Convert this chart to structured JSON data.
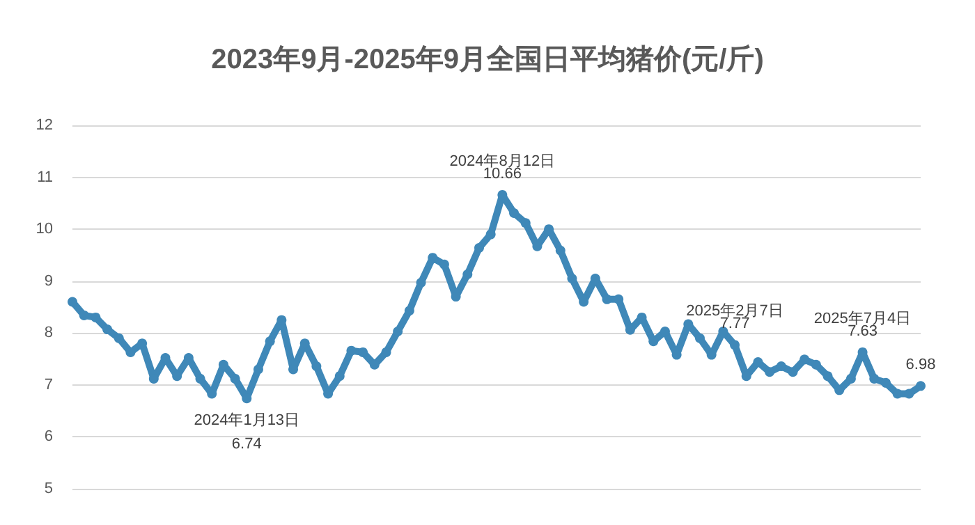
{
  "chart_data": {
    "type": "line",
    "title": "2023年9月-2025年9月全国日平均猪价(元/斤)",
    "grid": "y",
    "marker": "circle",
    "line_style": "solid",
    "ylim": [
      5,
      12
    ],
    "yticks": [
      5,
      6,
      7,
      8,
      9,
      10,
      11,
      12
    ],
    "categories": [
      null,
      null,
      null,
      null,
      null,
      null,
      null,
      null,
      null,
      null,
      null,
      null,
      null,
      null,
      null,
      null,
      null,
      null,
      null,
      null,
      null,
      null,
      null,
      null,
      null,
      null,
      null,
      null,
      null,
      null,
      null,
      null,
      null,
      null,
      null,
      null,
      null,
      null,
      null,
      null,
      null,
      null,
      null,
      null,
      null,
      null,
      null,
      null,
      null,
      null,
      null,
      null,
      null,
      null,
      null,
      null,
      null,
      null,
      null,
      null,
      null,
      null,
      null,
      null,
      null,
      null,
      null,
      null,
      null,
      null,
      null,
      null,
      null,
      null
    ],
    "series": [
      {
        "color": "#3f88b8",
        "values": [
          8.6,
          8.34,
          8.3,
          8.07,
          7.9,
          7.63,
          7.8,
          7.12,
          7.52,
          7.17,
          7.52,
          7.12,
          6.83,
          7.39,
          7.12,
          6.74,
          7.3,
          7.84,
          8.25,
          7.3,
          7.8,
          7.36,
          6.83,
          7.17,
          7.66,
          7.63,
          7.39,
          7.63,
          8.03,
          8.43,
          8.97,
          9.45,
          9.32,
          8.7,
          9.13,
          9.64,
          9.9,
          10.66,
          10.31,
          10.12,
          9.67,
          10.0,
          9.59,
          9.05,
          8.6,
          9.05,
          8.65,
          8.65,
          8.06,
          8.3,
          7.84,
          8.03,
          7.58,
          8.17,
          7.9,
          7.58,
          8.03,
          7.77,
          7.17,
          7.44,
          7.25,
          7.36,
          7.25,
          7.49,
          7.39,
          7.17,
          6.9,
          7.12,
          7.63,
          7.12,
          7.04,
          6.83,
          6.83,
          6.98
        ],
        "value_labels": [
          null,
          null,
          null,
          null,
          null,
          null,
          null,
          null,
          null,
          null,
          null,
          null,
          null,
          null,
          null,
          "6.74",
          null,
          null,
          null,
          null,
          null,
          null,
          null,
          null,
          null,
          null,
          null,
          null,
          null,
          null,
          null,
          null,
          null,
          null,
          null,
          null,
          null,
          "10.66",
          null,
          null,
          null,
          null,
          null,
          null,
          null,
          null,
          null,
          null,
          null,
          null,
          null,
          null,
          null,
          null,
          null,
          null,
          null,
          "7.77",
          null,
          null,
          null,
          null,
          null,
          null,
          null,
          null,
          null,
          null,
          "7.63",
          null,
          null,
          null,
          null,
          "6.98"
        ]
      }
    ],
    "annotations": [
      {
        "text": "2024年1月13日",
        "y": 6.74
      },
      {
        "text": "2024年8月12日",
        "y": 10.66
      },
      {
        "text": "2025年2月7日",
        "y": 7.77
      },
      {
        "text": "2025年7月4日",
        "y": 7.63
      }
    ]
  }
}
